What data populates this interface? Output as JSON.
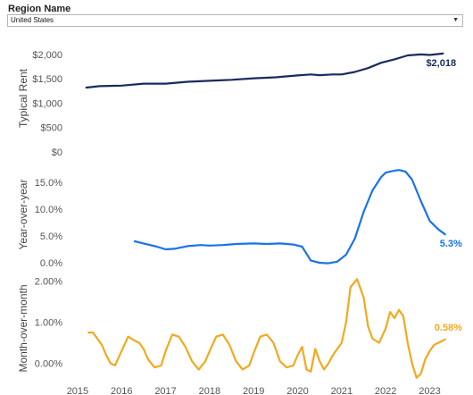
{
  "filter": {
    "label": "Region Name",
    "value": "United States"
  },
  "chart_data": [
    {
      "type": "line",
      "ylabel": "Typical Rent",
      "color": "#1a2b5e",
      "yticks": [
        0,
        500,
        1000,
        1500,
        2000
      ],
      "ytick_labels": [
        "$0",
        "$500",
        "$1,000",
        "$1,500",
        "$2,000"
      ],
      "ylim": [
        0,
        2200
      ],
      "end_label": "$2,018",
      "x": [
        2015.2,
        2015.5,
        2016.0,
        2016.5,
        2017.0,
        2017.5,
        2018.0,
        2018.5,
        2019.0,
        2019.5,
        2020.0,
        2020.3,
        2020.5,
        2020.8,
        2021.0,
        2021.3,
        2021.6,
        2021.9,
        2022.2,
        2022.5,
        2022.8,
        2023.0,
        2023.3
      ],
      "y": [
        1320,
        1350,
        1360,
        1400,
        1400,
        1440,
        1460,
        1480,
        1510,
        1530,
        1570,
        1590,
        1575,
        1590,
        1590,
        1640,
        1720,
        1830,
        1900,
        1980,
        2000,
        1990,
        2018
      ]
    },
    {
      "type": "line",
      "ylabel": "Year-over-year",
      "color": "#1a73e8",
      "yticks": [
        0,
        5,
        10,
        15
      ],
      "ytick_labels": [
        "0.0%",
        "5.0%",
        "10.0%",
        "15.0%"
      ],
      "ylim": [
        -1,
        19
      ],
      "end_label": "5.3%",
      "x": [
        2016.3,
        2016.5,
        2016.8,
        2017.0,
        2017.2,
        2017.5,
        2017.8,
        2018.0,
        2018.3,
        2018.6,
        2019.0,
        2019.3,
        2019.6,
        2019.9,
        2020.1,
        2020.3,
        2020.5,
        2020.7,
        2020.9,
        2021.1,
        2021.3,
        2021.5,
        2021.7,
        2021.9,
        2022.0,
        2022.15,
        2022.3,
        2022.45,
        2022.6,
        2022.8,
        2023.0,
        2023.2,
        2023.35
      ],
      "y": [
        4.0,
        3.6,
        3.0,
        2.5,
        2.6,
        3.1,
        3.3,
        3.2,
        3.3,
        3.5,
        3.6,
        3.5,
        3.6,
        3.4,
        3.0,
        0.4,
        0.0,
        -0.1,
        0.2,
        1.5,
        4.5,
        9.5,
        13.5,
        16.0,
        16.8,
        17.1,
        17.3,
        17.0,
        15.5,
        11.5,
        7.8,
        6.2,
        5.3
      ]
    },
    {
      "type": "line",
      "ylabel": "Month-over-month",
      "color": "#f2a91f",
      "yticks": [
        0,
        1,
        2
      ],
      "ytick_labels": [
        "0.00%",
        "1.00%",
        "2.00%"
      ],
      "ylim": [
        -0.4,
        2.1
      ],
      "end_label": "0.58%",
      "x": [
        2015.25,
        2015.35,
        2015.45,
        2015.55,
        2015.65,
        2015.75,
        2015.85,
        2016.0,
        2016.15,
        2016.3,
        2016.4,
        2016.5,
        2016.6,
        2016.75,
        2016.9,
        2017.0,
        2017.15,
        2017.3,
        2017.45,
        2017.6,
        2017.75,
        2017.9,
        2018.0,
        2018.15,
        2018.3,
        2018.45,
        2018.6,
        2018.75,
        2018.9,
        2019.0,
        2019.15,
        2019.3,
        2019.45,
        2019.6,
        2019.75,
        2019.9,
        2020.0,
        2020.1,
        2020.2,
        2020.3,
        2020.4,
        2020.5,
        2020.6,
        2020.7,
        2020.8,
        2020.9,
        2021.0,
        2021.1,
        2021.2,
        2021.35,
        2021.5,
        2021.6,
        2021.7,
        2021.85,
        2022.0,
        2022.1,
        2022.2,
        2022.3,
        2022.4,
        2022.5,
        2022.6,
        2022.7,
        2022.8,
        2022.9,
        2023.0,
        2023.1,
        2023.2,
        2023.35
      ],
      "y": [
        0.75,
        0.75,
        0.6,
        0.45,
        0.2,
        0.0,
        -0.05,
        0.3,
        0.65,
        0.55,
        0.5,
        0.35,
        0.1,
        -0.1,
        -0.05,
        0.3,
        0.7,
        0.65,
        0.4,
        0.05,
        -0.15,
        0.05,
        0.3,
        0.65,
        0.7,
        0.45,
        0.05,
        -0.15,
        -0.05,
        0.25,
        0.65,
        0.7,
        0.5,
        0.05,
        -0.1,
        -0.05,
        0.2,
        0.4,
        -0.15,
        -0.2,
        0.35,
        0.05,
        -0.15,
        0.0,
        0.2,
        0.35,
        0.5,
        1.0,
        1.85,
        2.05,
        1.6,
        0.9,
        0.6,
        0.5,
        0.85,
        1.25,
        1.1,
        1.3,
        1.15,
        0.5,
        0.0,
        -0.35,
        -0.25,
        0.1,
        0.3,
        0.45,
        0.5,
        0.58
      ]
    }
  ],
  "x_axis": {
    "ticks": [
      2015,
      2016,
      2017,
      2018,
      2019,
      2020,
      2021,
      2022,
      2023
    ],
    "labels": [
      "2015",
      "2016",
      "2017",
      "2018",
      "2019",
      "2020",
      "2021",
      "2022",
      "2023"
    ],
    "xlim": [
      2014.9,
      2023.7
    ]
  }
}
